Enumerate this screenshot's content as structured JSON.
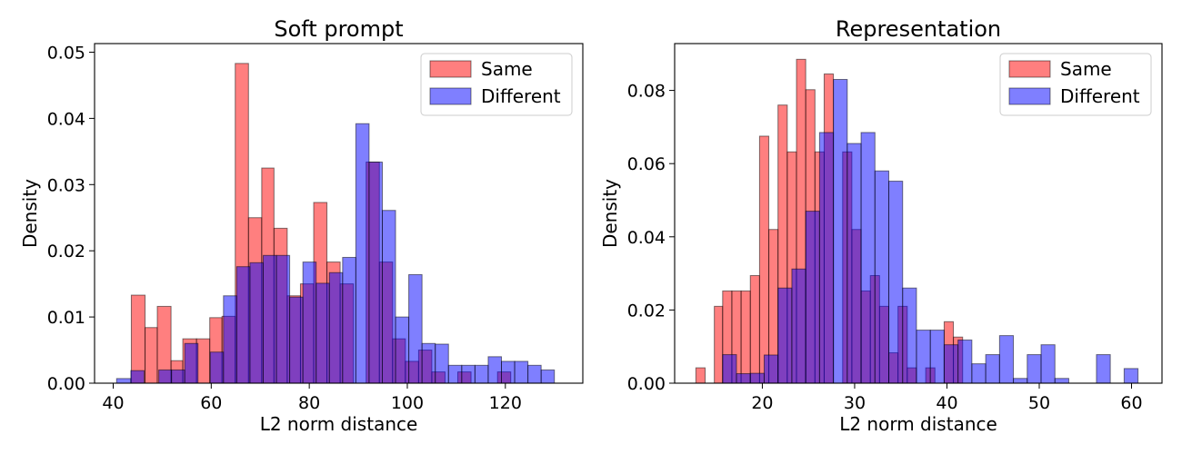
{
  "chart_data": [
    {
      "type": "histogram",
      "title": "Soft prompt",
      "xlabel": "L2 norm distance",
      "ylabel": "Density",
      "xlim": [
        36.2,
        135.8
      ],
      "ylim": [
        0,
        0.0513
      ],
      "xticks": [
        40,
        60,
        80,
        100,
        120
      ],
      "yticks": [
        0.0,
        0.01,
        0.02,
        0.03,
        0.04,
        0.05
      ],
      "ytick_decimals": 2,
      "legend_position": "top-right",
      "series": [
        {
          "name": "Same",
          "color": "#ff0000",
          "opacity": 0.5,
          "bins": [
            [
              43.7,
              46.5,
              0.0133
            ],
            [
              46.5,
              49.0,
              0.0084
            ],
            [
              49.0,
              51.8,
              0.0116
            ],
            [
              51.8,
              54.2,
              0.0034
            ],
            [
              54.2,
              57.0,
              0.0067
            ],
            [
              57.0,
              59.7,
              0.0067
            ],
            [
              59.7,
              62.2,
              0.0099
            ],
            [
              62.2,
              64.9,
              0.0101
            ],
            [
              64.9,
              67.6,
              0.0483
            ],
            [
              67.6,
              70.3,
              0.025
            ],
            [
              70.3,
              72.8,
              0.0325
            ],
            [
              72.8,
              75.5,
              0.0234
            ],
            [
              75.5,
              78.2,
              0.0132
            ],
            [
              78.2,
              80.9,
              0.015
            ],
            [
              80.9,
              83.6,
              0.0273
            ],
            [
              83.6,
              86.3,
              0.0183
            ],
            [
              86.3,
              89.0,
              0.015
            ],
            [
              89.0,
              91.6,
              0.0
            ],
            [
              91.6,
              94.3,
              0.0334
            ],
            [
              94.3,
              97.0,
              0.0183
            ],
            [
              97.0,
              99.6,
              0.0067
            ],
            [
              99.6,
              102.3,
              0.0033
            ],
            [
              102.3,
              105.0,
              0.005
            ],
            [
              105.0,
              107.7,
              0.0017
            ],
            [
              107.7,
              110.3,
              0.0
            ],
            [
              110.3,
              113.0,
              0.0017
            ],
            [
              113.0,
              115.7,
              0.0
            ],
            [
              115.7,
              118.4,
              0.0
            ],
            [
              118.4,
              121.1,
              0.0017
            ]
          ]
        },
        {
          "name": "Different",
          "color": "#0000ff",
          "opacity": 0.5,
          "bins": [
            [
              40.7,
              43.6,
              0.0007
            ],
            [
              43.6,
              46.3,
              0.0019
            ],
            [
              46.3,
              49.3,
              0.0
            ],
            [
              49.3,
              51.9,
              0.002
            ],
            [
              51.9,
              54.6,
              0.002
            ],
            [
              54.6,
              57.3,
              0.006
            ],
            [
              57.3,
              59.8,
              0.0
            ],
            [
              59.8,
              62.5,
              0.0047
            ],
            [
              62.5,
              65.2,
              0.0132
            ],
            [
              65.2,
              67.9,
              0.0176
            ],
            [
              67.9,
              70.6,
              0.0182
            ],
            [
              70.6,
              73.3,
              0.0193
            ],
            [
              73.3,
              76.0,
              0.0193
            ],
            [
              76.0,
              78.7,
              0.013
            ],
            [
              78.7,
              81.4,
              0.0183
            ],
            [
              81.4,
              84.1,
              0.0151
            ],
            [
              84.1,
              86.8,
              0.0167
            ],
            [
              86.8,
              89.5,
              0.019
            ],
            [
              89.5,
              92.2,
              0.0392
            ],
            [
              92.2,
              94.9,
              0.0334
            ],
            [
              94.9,
              97.6,
              0.0261
            ],
            [
              97.6,
              100.3,
              0.01
            ],
            [
              100.3,
              103.0,
              0.0164
            ],
            [
              103.0,
              105.7,
              0.006
            ],
            [
              105.7,
              108.4,
              0.0059
            ],
            [
              108.4,
              111.1,
              0.0027
            ],
            [
              111.1,
              113.8,
              0.0027
            ],
            [
              113.8,
              116.5,
              0.0027
            ],
            [
              116.5,
              119.2,
              0.004
            ],
            [
              119.2,
              121.9,
              0.0033
            ],
            [
              121.9,
              124.6,
              0.0033
            ],
            [
              124.6,
              127.3,
              0.0027
            ],
            [
              127.3,
              130.0,
              0.002
            ]
          ]
        }
      ]
    },
    {
      "type": "histogram",
      "title": "Representation",
      "xlabel": "L2 norm distance",
      "ylabel": "Density",
      "xlim": [
        10.5,
        63.3
      ],
      "ylim": [
        0,
        0.0928
      ],
      "xticks": [
        20,
        30,
        40,
        50,
        60
      ],
      "yticks": [
        0.0,
        0.02,
        0.04,
        0.06,
        0.08
      ],
      "ytick_decimals": 2,
      "legend_position": "top-right",
      "series": [
        {
          "name": "Same",
          "color": "#ff0000",
          "opacity": 0.5,
          "bins": [
            [
              12.8,
              13.8,
              0.0042
            ],
            [
              13.8,
              14.8,
              0.0
            ],
            [
              14.8,
              15.7,
              0.021
            ],
            [
              15.7,
              16.7,
              0.0252
            ],
            [
              16.7,
              17.7,
              0.0252
            ],
            [
              17.7,
              18.7,
              0.0252
            ],
            [
              18.7,
              19.7,
              0.0294
            ],
            [
              19.7,
              20.7,
              0.0675
            ],
            [
              20.7,
              21.7,
              0.042
            ],
            [
              21.7,
              22.7,
              0.076
            ],
            [
              22.7,
              23.7,
              0.0632
            ],
            [
              23.7,
              24.7,
              0.0885
            ],
            [
              24.7,
              25.7,
              0.0802
            ],
            [
              25.7,
              26.7,
              0.0632
            ],
            [
              26.7,
              27.7,
              0.0845
            ],
            [
              27.7,
              28.7,
              0.0
            ],
            [
              28.7,
              29.7,
              0.0632
            ],
            [
              29.7,
              30.7,
              0.042
            ],
            [
              30.7,
              31.7,
              0.0252
            ],
            [
              31.7,
              32.7,
              0.0294
            ],
            [
              32.7,
              33.7,
              0.021
            ],
            [
              33.7,
              34.7,
              0.0083
            ],
            [
              34.7,
              35.7,
              0.021
            ],
            [
              35.7,
              36.7,
              0.0042
            ],
            [
              36.7,
              37.7,
              0.0
            ],
            [
              37.7,
              38.7,
              0.0042
            ],
            [
              38.7,
              39.7,
              0.0
            ],
            [
              39.7,
              40.7,
              0.0168
            ],
            [
              40.7,
              41.7,
              0.0126
            ]
          ]
        },
        {
          "name": "Different",
          "color": "#0000ff",
          "opacity": 0.5,
          "bins": [
            [
              15.7,
              17.2,
              0.0078
            ],
            [
              17.2,
              18.7,
              0.0026
            ],
            [
              18.7,
              20.2,
              0.0027
            ],
            [
              20.2,
              21.7,
              0.0077
            ],
            [
              21.7,
              23.2,
              0.026
            ],
            [
              23.2,
              24.7,
              0.0312
            ],
            [
              24.7,
              26.2,
              0.047
            ],
            [
              26.2,
              27.7,
              0.0685
            ],
            [
              27.7,
              29.2,
              0.083
            ],
            [
              29.2,
              30.7,
              0.0655
            ],
            [
              30.7,
              32.2,
              0.0685
            ],
            [
              32.2,
              33.7,
              0.058
            ],
            [
              33.7,
              35.2,
              0.0552
            ],
            [
              35.2,
              36.7,
              0.026
            ],
            [
              36.7,
              38.2,
              0.0145
            ],
            [
              38.2,
              39.7,
              0.0145
            ],
            [
              39.7,
              41.2,
              0.0105
            ],
            [
              41.2,
              42.7,
              0.0118
            ],
            [
              42.7,
              44.2,
              0.0053
            ],
            [
              44.2,
              45.7,
              0.0078
            ],
            [
              45.7,
              47.2,
              0.013
            ],
            [
              47.2,
              48.7,
              0.0013
            ],
            [
              48.7,
              50.2,
              0.0078
            ],
            [
              50.2,
              51.7,
              0.0105
            ],
            [
              51.7,
              53.2,
              0.0013
            ],
            [
              53.2,
              54.7,
              0.0
            ],
            [
              54.7,
              56.2,
              0.0
            ],
            [
              56.2,
              57.7,
              0.0078
            ],
            [
              57.7,
              59.2,
              0.0
            ],
            [
              59.2,
              60.7,
              0.004
            ]
          ]
        }
      ]
    }
  ]
}
